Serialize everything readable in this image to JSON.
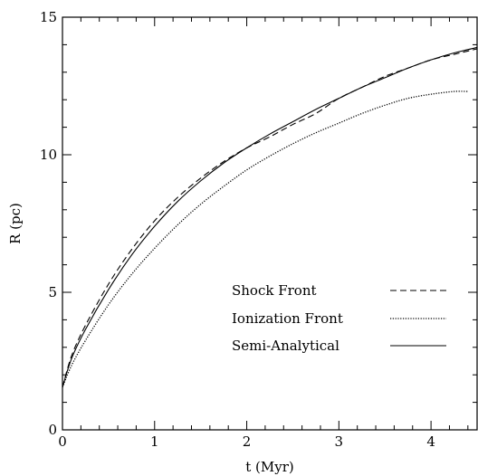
{
  "chart_data": {
    "type": "line",
    "xlabel": "t (Myr)",
    "ylabel": "R (pc)",
    "xlim": [
      0,
      4.5
    ],
    "ylim": [
      0,
      15
    ],
    "x_major_ticks": [
      0,
      1,
      2,
      3,
      4
    ],
    "y_major_ticks": [
      0,
      5,
      10,
      15
    ],
    "x_minor_step": 0.2,
    "y_minor_step": 1,
    "grid": false,
    "legend_placement": "bottom-right",
    "series": [
      {
        "name": "Shock Front",
        "style": "dashed",
        "x": [
          0,
          0.1,
          0.25,
          0.5,
          0.75,
          1.0,
          1.25,
          1.5,
          1.75,
          2.0,
          2.25,
          2.5,
          2.75,
          3.0,
          3.25,
          3.5,
          3.75,
          4.0,
          4.25,
          4.5
        ],
        "y": [
          1.55,
          2.7,
          3.8,
          5.3,
          6.55,
          7.6,
          8.45,
          9.15,
          9.75,
          10.25,
          10.65,
          11.1,
          11.5,
          12.05,
          12.45,
          12.85,
          13.15,
          13.45,
          13.65,
          13.85
        ]
      },
      {
        "name": "Ionization Front",
        "style": "dotted",
        "x": [
          0,
          0.1,
          0.25,
          0.5,
          0.75,
          1.0,
          1.25,
          1.5,
          1.75,
          2.0,
          2.25,
          2.5,
          2.75,
          3.0,
          3.25,
          3.5,
          3.75,
          4.0,
          4.25,
          4.4
        ],
        "y": [
          1.55,
          2.35,
          3.25,
          4.55,
          5.65,
          6.6,
          7.45,
          8.2,
          8.85,
          9.45,
          9.95,
          10.4,
          10.8,
          11.15,
          11.5,
          11.8,
          12.05,
          12.2,
          12.3,
          12.3
        ]
      },
      {
        "name": "Semi-Analytical",
        "style": "solid",
        "x": [
          0,
          0.1,
          0.25,
          0.5,
          0.75,
          1.0,
          1.25,
          1.5,
          1.75,
          2.0,
          2.25,
          2.5,
          2.75,
          3.0,
          3.25,
          3.5,
          3.75,
          4.0,
          4.25,
          4.5
        ],
        "y": [
          1.55,
          2.6,
          3.65,
          5.1,
          6.35,
          7.4,
          8.3,
          9.05,
          9.7,
          10.25,
          10.75,
          11.2,
          11.65,
          12.05,
          12.45,
          12.8,
          13.15,
          13.45,
          13.7,
          13.9
        ]
      }
    ]
  }
}
